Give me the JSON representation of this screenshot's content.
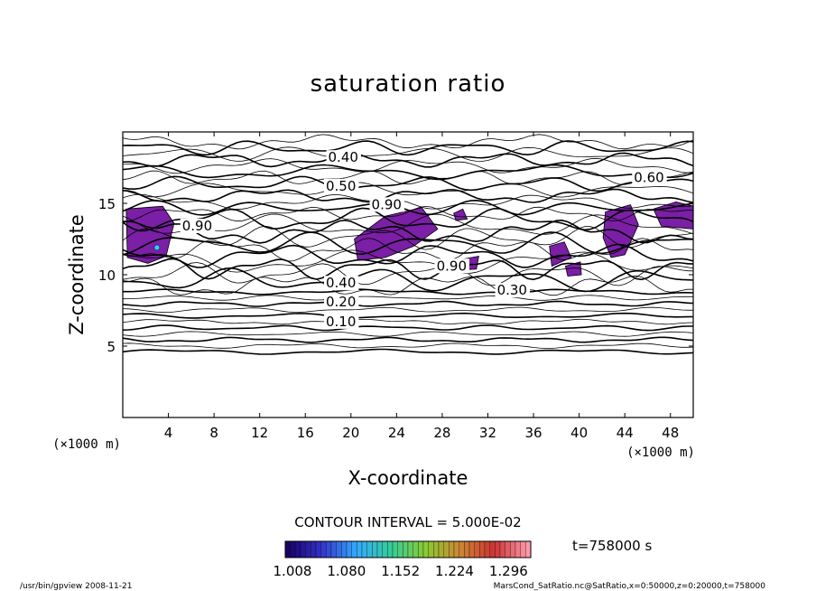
{
  "chart_data": {
    "type": "contour",
    "title": "saturation ratio",
    "xlabel": "X-coordinate",
    "ylabel": "Z-coordinate",
    "x_unit": "(×1000 m)",
    "z_unit": "(×1000 m)",
    "xlim": [
      0,
      50
    ],
    "ylim": [
      0,
      20
    ],
    "xticks": [
      4,
      8,
      12,
      16,
      20,
      24,
      28,
      32,
      36,
      40,
      44,
      48
    ],
    "yticks": [
      5,
      10,
      15
    ],
    "grid": false,
    "contour_interval_text": "CONTOUR INTERVAL = 5.000E-02",
    "contour_labels": [
      {
        "value": "0.10",
        "x": 17.8,
        "z": 6.4
      },
      {
        "value": "0.20",
        "x": 17.8,
        "z": 7.8
      },
      {
        "value": "0.30",
        "x": 32.8,
        "z": 8.6
      },
      {
        "value": "0.40",
        "x": 17.8,
        "z": 9.1
      },
      {
        "value": "0.40",
        "x": 18.0,
        "z": 17.9
      },
      {
        "value": "0.50",
        "x": 17.8,
        "z": 15.9
      },
      {
        "value": "0.60",
        "x": 44.8,
        "z": 16.5
      },
      {
        "value": "0.90",
        "x": 21.8,
        "z": 14.6
      },
      {
        "value": "0.90",
        "x": 27.5,
        "z": 10.3
      },
      {
        "value": "0.90",
        "x": 5.2,
        "z": 13.1
      }
    ],
    "filled_regions_label": "saturation ratio > 1",
    "colorbar": {
      "tick_labels": [
        "1.008",
        "1.080",
        "1.152",
        "1.224",
        "1.296"
      ],
      "min": 1.008,
      "max": 1.296,
      "colors": [
        "#1a0066",
        "#3333cc",
        "#33aaff",
        "#33cc99",
        "#88cc33",
        "#cc8833",
        "#cc3333",
        "#ff99aa"
      ]
    },
    "time_label": "t=758000  s"
  },
  "footer": {
    "left": "/usr/bin/gpview   2008-11-21",
    "right": "MarsCond_SatRatio.nc@SatRatio,x=0:50000,z=0:20000,t=758000"
  }
}
